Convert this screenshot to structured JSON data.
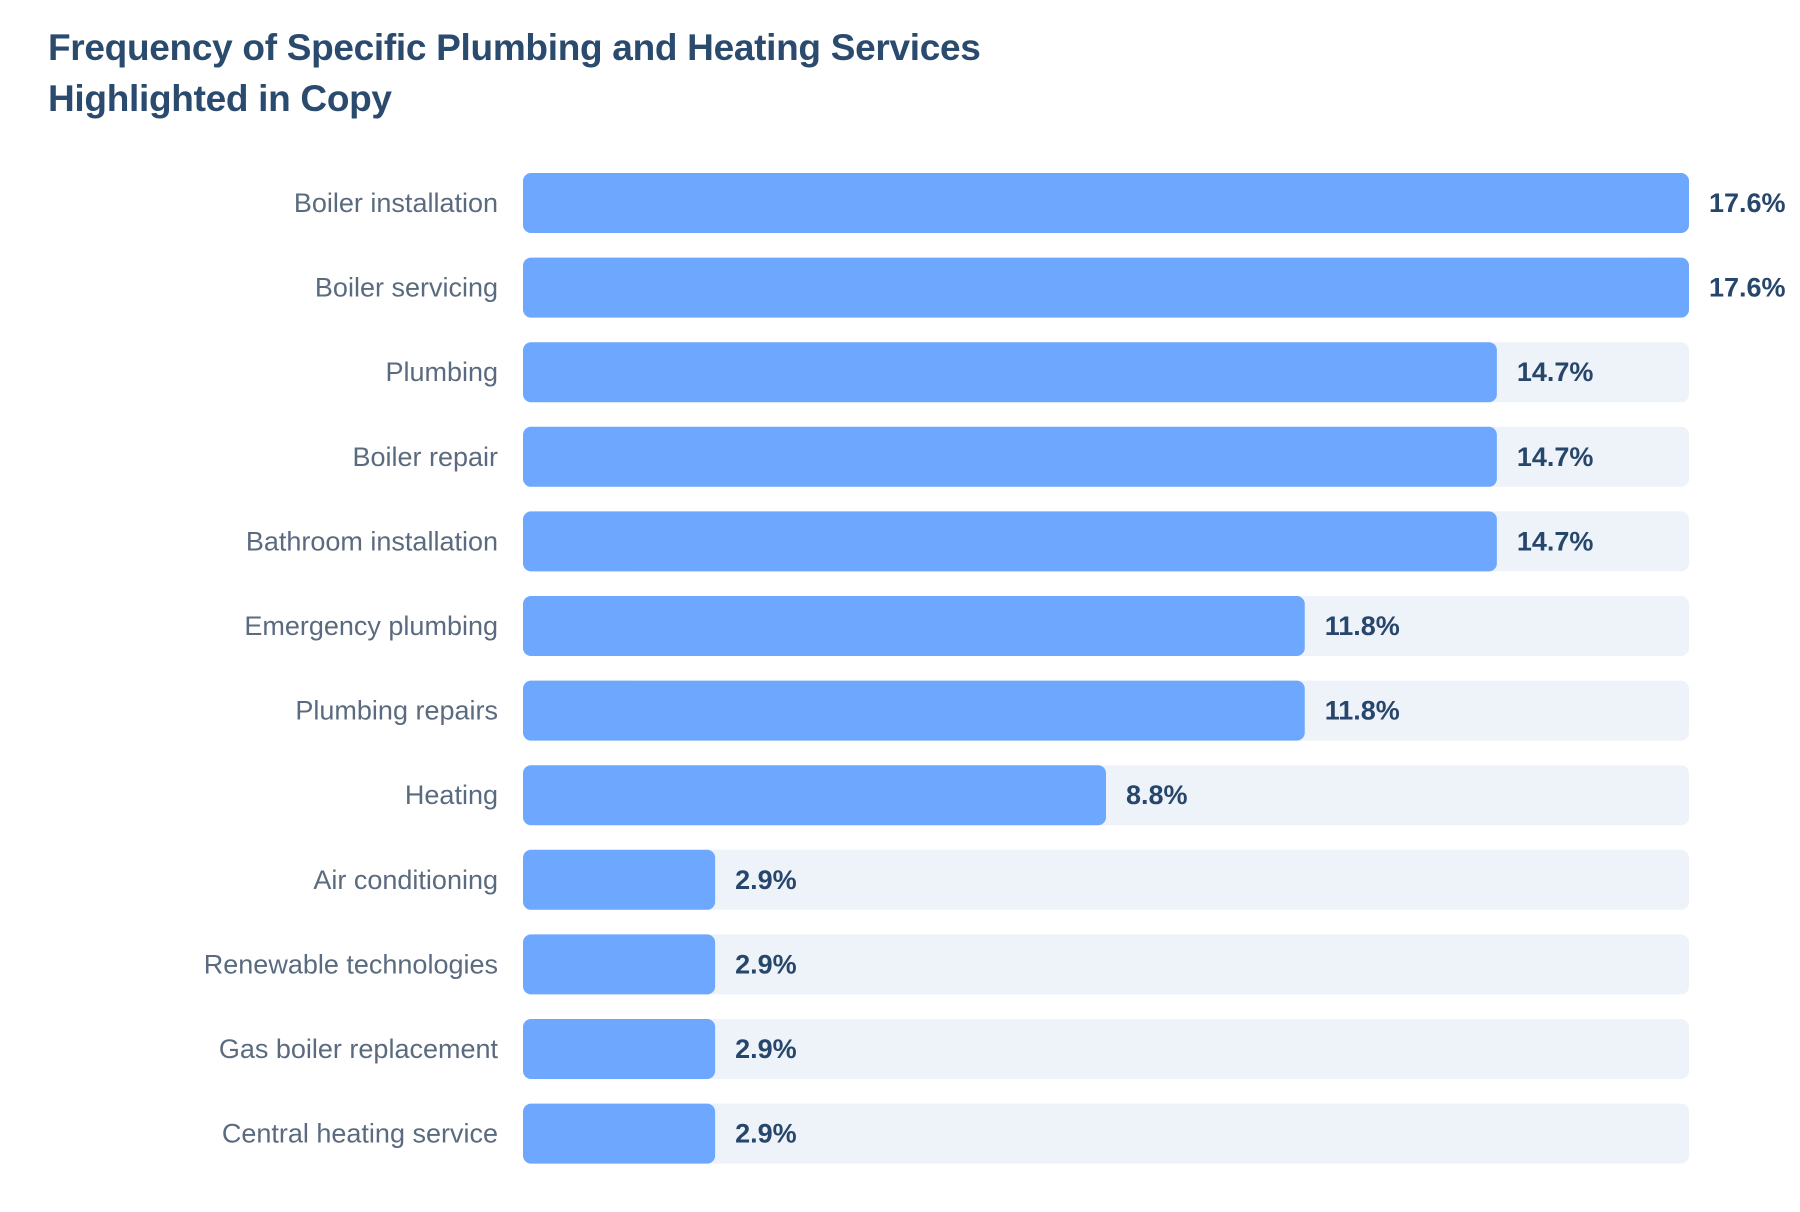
{
  "chart_data": {
    "type": "bar",
    "orientation": "horizontal",
    "title": "Frequency of Specific Plumbing and Heating Services Highlighted in Copy",
    "title_lines": [
      "Frequency of Specific Plumbing and Heating Services",
      "Highlighted in Copy"
    ],
    "categories": [
      "Boiler installation",
      "Boiler servicing",
      "Plumbing",
      "Boiler repair",
      "Bathroom installation",
      "Emergency plumbing",
      "Plumbing repairs",
      "Heating",
      "Air conditioning",
      "Renewable technologies",
      "Gas boiler replacement",
      "Central heating service"
    ],
    "values": [
      17.6,
      17.6,
      14.7,
      14.7,
      14.7,
      11.8,
      11.8,
      8.8,
      2.9,
      2.9,
      2.9,
      2.9
    ],
    "value_labels": [
      "17.6%",
      "17.6%",
      "14.7%",
      "14.7%",
      "14.7%",
      "11.8%",
      "11.8%",
      "8.8%",
      "2.9%",
      "2.9%",
      "2.9%",
      "2.9%"
    ],
    "unit": "%",
    "xlim": [
      0,
      17.6
    ],
    "grid": false,
    "legend": "none",
    "colors": {
      "bar": "#6ea8fe",
      "track": "#eef3fa",
      "title": "#2a4a6e",
      "category_label": "#5b6b7f",
      "value_label": "#27466b"
    }
  }
}
